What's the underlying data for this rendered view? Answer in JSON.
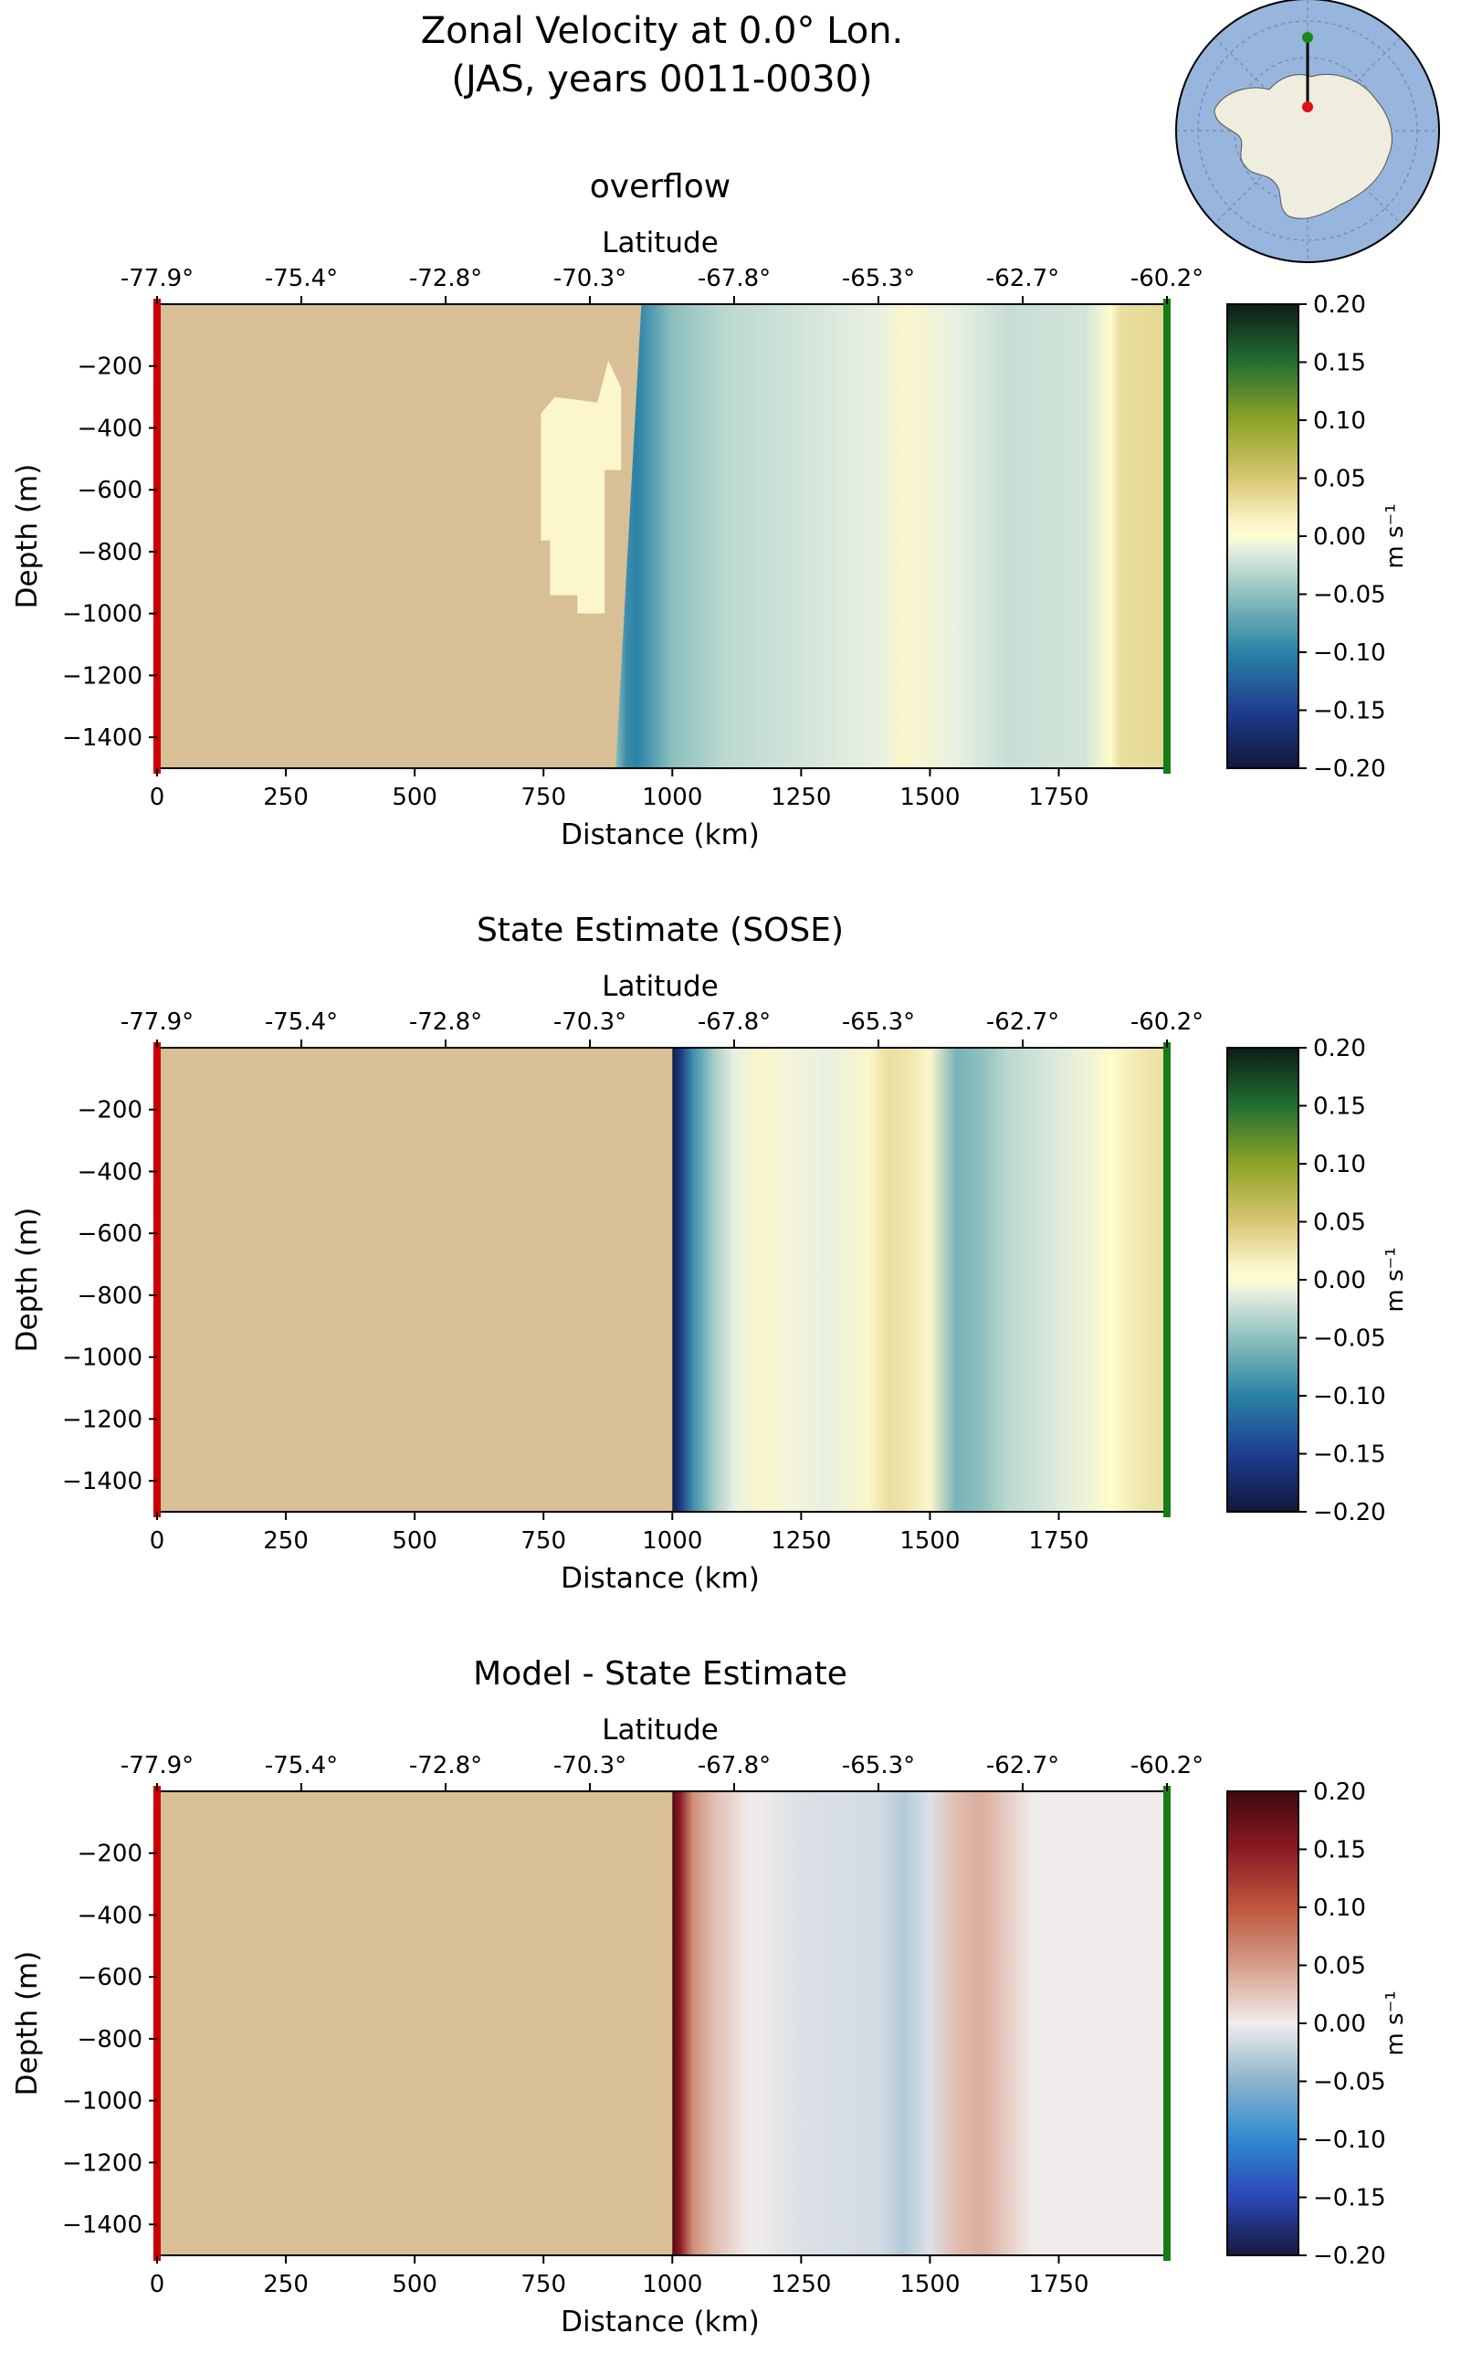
{
  "figure": {
    "title_line1": "Zonal Velocity at 0.0° Lon.",
    "title_line2": "(JAS, years 0011-0030)"
  },
  "inset_map": {
    "land_color": "#efedde",
    "ocean_color": "#97b5dd",
    "marker_start_color": "#1a8a1a",
    "marker_end_color": "#e01010"
  },
  "colors": {
    "land": "#d8bf95",
    "start_marker": "#cc0000",
    "end_marker": "#1a7a1a"
  },
  "chart_data": [
    {
      "type": "heatmap",
      "title": "overflow",
      "xlabel": "Distance (km)",
      "ylabel": "Depth (m)",
      "top_axis_label": "Latitude",
      "top_tick_labels": [
        "-77.9°",
        "-75.4°",
        "-72.8°",
        "-70.3°",
        "-67.8°",
        "-65.3°",
        "-62.7°",
        "-60.2°"
      ],
      "top_tick_positions_km": [
        0,
        280,
        560,
        840,
        1120,
        1400,
        1680,
        1960
      ],
      "x_ticks": [
        0,
        250,
        500,
        750,
        1000,
        1250,
        1500,
        1750
      ],
      "y_ticks": [
        -200,
        -400,
        -600,
        -800,
        -1000,
        -1200,
        -1400
      ],
      "xlim": [
        0,
        1960
      ],
      "ylim": [
        -1500,
        0
      ],
      "colormap": "delta",
      "colorbar_label": "m s⁻¹",
      "colorbar_ticks": [
        "0.20",
        "0.15",
        "0.10",
        "0.05",
        "0.00",
        "−0.05",
        "−0.10",
        "−0.15",
        "−0.20"
      ],
      "vmin": -0.2,
      "vmax": 0.2,
      "land_mask": {
        "coast_bottom_km": 890,
        "coast_top_km": 940,
        "ice_shelf_cavity_km": [
          745,
          890
        ],
        "ice_shelf_cavity_depth_m": [
          -1000,
          -300
        ]
      },
      "profile": {
        "x_km": [
          890,
          910,
          930,
          960,
          1000,
          1100,
          1250,
          1400,
          1450,
          1550,
          1650,
          1800,
          1850,
          1870,
          1960
        ],
        "value": [
          -0.05,
          -0.09,
          -0.1,
          -0.08,
          -0.05,
          -0.03,
          -0.02,
          -0.01,
          0.01,
          -0.01,
          -0.025,
          -0.02,
          0.0,
          0.03,
          0.035
        ]
      }
    },
    {
      "type": "heatmap",
      "title": "State Estimate (SOSE)",
      "xlabel": "Distance (km)",
      "ylabel": "Depth (m)",
      "top_axis_label": "Latitude",
      "top_tick_labels": [
        "-77.9°",
        "-75.4°",
        "-72.8°",
        "-70.3°",
        "-67.8°",
        "-65.3°",
        "-62.7°",
        "-60.2°"
      ],
      "top_tick_positions_km": [
        0,
        280,
        560,
        840,
        1120,
        1400,
        1680,
        1960
      ],
      "x_ticks": [
        0,
        250,
        500,
        750,
        1000,
        1250,
        1500,
        1750
      ],
      "y_ticks": [
        -200,
        -400,
        -600,
        -800,
        -1000,
        -1200,
        -1400
      ],
      "xlim": [
        0,
        1960
      ],
      "ylim": [
        -1500,
        0
      ],
      "colormap": "delta",
      "colorbar_label": "m s⁻¹",
      "colorbar_ticks": [
        "0.20",
        "0.15",
        "0.10",
        "0.05",
        "0.00",
        "−0.05",
        "−0.10",
        "−0.15",
        "−0.20"
      ],
      "vmin": -0.2,
      "vmax": 0.2,
      "land_mask": {
        "coast_bottom_km": 1000,
        "coast_top_km": 1000
      },
      "profile": {
        "x_km": [
          1000,
          1015,
          1040,
          1080,
          1120,
          1170,
          1220,
          1300,
          1380,
          1420,
          1450,
          1500,
          1550,
          1600,
          1650,
          1750,
          1850,
          1900,
          1960
        ],
        "value": [
          -0.19,
          -0.16,
          -0.09,
          -0.04,
          -0.01,
          0.01,
          -0.005,
          -0.01,
          0.01,
          0.03,
          0.025,
          0.01,
          -0.06,
          -0.05,
          -0.03,
          -0.015,
          0.0,
          0.02,
          0.03
        ]
      }
    },
    {
      "type": "heatmap",
      "title": "Model - State Estimate",
      "xlabel": "Distance (km)",
      "ylabel": "Depth (m)",
      "top_axis_label": "Latitude",
      "top_tick_labels": [
        "-77.9°",
        "-75.4°",
        "-72.8°",
        "-70.3°",
        "-67.8°",
        "-65.3°",
        "-62.7°",
        "-60.2°"
      ],
      "top_tick_positions_km": [
        0,
        280,
        560,
        840,
        1120,
        1400,
        1680,
        1960
      ],
      "x_ticks": [
        0,
        250,
        500,
        750,
        1000,
        1250,
        1500,
        1750
      ],
      "y_ticks": [
        -200,
        -400,
        -600,
        -800,
        -1000,
        -1200,
        -1400
      ],
      "xlim": [
        0,
        1960
      ],
      "ylim": [
        -1500,
        0
      ],
      "colormap": "balance",
      "colorbar_label": "m s⁻¹",
      "colorbar_ticks": [
        "0.20",
        "0.15",
        "0.10",
        "0.05",
        "0.00",
        "−0.05",
        "−0.10",
        "−0.15",
        "−0.20"
      ],
      "vmin": -0.2,
      "vmax": 0.2,
      "land_mask": {
        "coast_bottom_km": 1000,
        "coast_top_km": 1000
      },
      "profile": {
        "x_km": [
          1000,
          1015,
          1040,
          1080,
          1150,
          1250,
          1400,
          1450,
          1500,
          1550,
          1600,
          1650,
          1700,
          1800,
          1960
        ],
        "value": [
          0.19,
          0.15,
          0.06,
          0.03,
          0.0,
          -0.01,
          -0.015,
          -0.03,
          -0.01,
          0.03,
          0.04,
          0.02,
          0.0,
          0.0,
          0.0
        ]
      }
    }
  ]
}
